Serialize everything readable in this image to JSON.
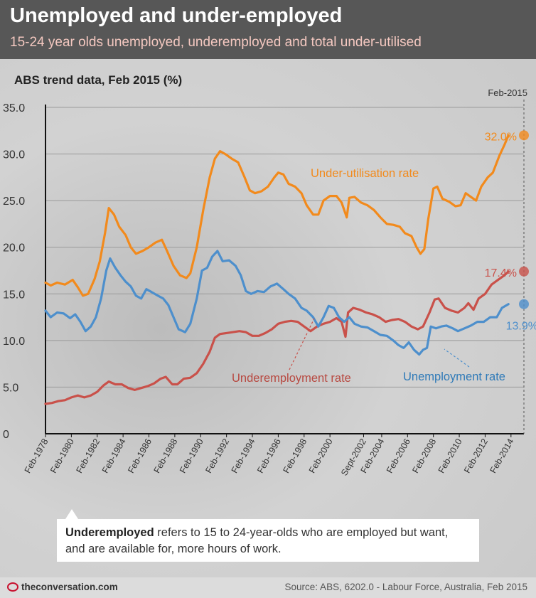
{
  "header": {
    "title": "Unemployed and under-employed",
    "subtitle": "15-24 year olds unemployed, underemployed and total under-utilised"
  },
  "chart_title": "ABS trend data, Feb 2015 (%)",
  "note": {
    "term": "Underemployed",
    "text": " refers to 15 to 24-year-olds who are employed but want, and are available for, more hours of work."
  },
  "footer": {
    "brand": "theconversation.com",
    "brand_icon": "conversation-logo-icon",
    "source": "Source: ABS, 6202.0 - Labour Force, Australia, Feb 2015"
  },
  "chart_data": {
    "type": "line",
    "ylim": [
      0,
      35
    ],
    "xlim": [
      1978.1,
      2015.1
    ],
    "y_ticks": [
      {
        "value": 0,
        "label": "0"
      },
      {
        "value": 5,
        "label": "5.0"
      },
      {
        "value": 10,
        "label": "10.0"
      },
      {
        "value": 15,
        "label": "15.0"
      },
      {
        "value": 20,
        "label": "20.0"
      },
      {
        "value": 25,
        "label": "25.0"
      },
      {
        "value": 30,
        "label": "30.0"
      },
      {
        "value": 35,
        "label": "35.0"
      }
    ],
    "x_ticks": [
      {
        "value": 1978.1,
        "label": "Feb-1978"
      },
      {
        "value": 1980.1,
        "label": "Feb-1980"
      },
      {
        "value": 1982.1,
        "label": "Feb-1982"
      },
      {
        "value": 1984.1,
        "label": "Feb-1984"
      },
      {
        "value": 1986.1,
        "label": "Feb-1986"
      },
      {
        "value": 1988.1,
        "label": "Feb-1988"
      },
      {
        "value": 1990.1,
        "label": "Feb-1990"
      },
      {
        "value": 1992.1,
        "label": "Feb-1992"
      },
      {
        "value": 1994.1,
        "label": "Feb-1994"
      },
      {
        "value": 1996.1,
        "label": "Feb-1996"
      },
      {
        "value": 1998.1,
        "label": "Feb-1998"
      },
      {
        "value": 2000.1,
        "label": "Feb-2000"
      },
      {
        "value": 2002.7,
        "label": "Sept-2002"
      },
      {
        "value": 2004.1,
        "label": "Feb-2004"
      },
      {
        "value": 2006.1,
        "label": "Feb-2006"
      },
      {
        "value": 2008.1,
        "label": "Feb-2008"
      },
      {
        "value": 2010.1,
        "label": "Feb-2010"
      },
      {
        "value": 2012.1,
        "label": "Feb-2012"
      },
      {
        "value": 2014.1,
        "label": "Feb-2014"
      }
    ],
    "ref_label": "Feb-2015",
    "ref_x": 2015.1,
    "grid": "horizontal",
    "series": [
      {
        "name": "Under-utilisation rate",
        "color": "#f28a1c",
        "end_label": "32.0%",
        "points": [
          [
            1978.1,
            16.2
          ],
          [
            1978.5,
            15.9
          ],
          [
            1979.0,
            16.2
          ],
          [
            1979.6,
            16.0
          ],
          [
            1980.2,
            16.5
          ],
          [
            1980.6,
            15.7
          ],
          [
            1981.0,
            14.8
          ],
          [
            1981.4,
            15.0
          ],
          [
            1981.9,
            16.6
          ],
          [
            1982.3,
            18.5
          ],
          [
            1982.7,
            21.5
          ],
          [
            1983.0,
            24.2
          ],
          [
            1983.4,
            23.5
          ],
          [
            1983.8,
            22.2
          ],
          [
            1984.3,
            21.3
          ],
          [
            1984.7,
            20.0
          ],
          [
            1985.1,
            19.3
          ],
          [
            1985.6,
            19.6
          ],
          [
            1986.1,
            20.0
          ],
          [
            1986.6,
            20.5
          ],
          [
            1987.1,
            20.8
          ],
          [
            1987.5,
            19.6
          ],
          [
            1988.0,
            18.0
          ],
          [
            1988.5,
            17.0
          ],
          [
            1989.0,
            16.7
          ],
          [
            1989.3,
            17.2
          ],
          [
            1989.8,
            20.0
          ],
          [
            1990.3,
            24.0
          ],
          [
            1990.8,
            27.5
          ],
          [
            1991.2,
            29.5
          ],
          [
            1991.6,
            30.3
          ],
          [
            1992.0,
            30.0
          ],
          [
            1992.5,
            29.5
          ],
          [
            1993.0,
            29.1
          ],
          [
            1993.5,
            27.5
          ],
          [
            1993.9,
            26.1
          ],
          [
            1994.3,
            25.8
          ],
          [
            1994.8,
            26.0
          ],
          [
            1995.3,
            26.5
          ],
          [
            1995.8,
            27.5
          ],
          [
            1996.1,
            28.0
          ],
          [
            1996.5,
            27.8
          ],
          [
            1996.9,
            26.8
          ],
          [
            1997.4,
            26.5
          ],
          [
            1997.9,
            25.8
          ],
          [
            1998.3,
            24.5
          ],
          [
            1998.8,
            23.5
          ],
          [
            1999.2,
            23.5
          ],
          [
            1999.6,
            25.0
          ],
          [
            2000.1,
            25.5
          ],
          [
            2000.6,
            25.5
          ],
          [
            2001.0,
            24.8
          ],
          [
            2001.4,
            23.2
          ],
          [
            2001.6,
            25.3
          ],
          [
            2002.0,
            25.4
          ],
          [
            2002.5,
            24.8
          ],
          [
            2003.0,
            24.5
          ],
          [
            2003.5,
            24.0
          ],
          [
            2004.0,
            23.2
          ],
          [
            2004.5,
            22.5
          ],
          [
            2005.0,
            22.4
          ],
          [
            2005.5,
            22.2
          ],
          [
            2005.9,
            21.5
          ],
          [
            2006.4,
            21.2
          ],
          [
            2006.8,
            20.0
          ],
          [
            2007.1,
            19.3
          ],
          [
            2007.4,
            19.8
          ],
          [
            2007.7,
            23.0
          ],
          [
            2008.1,
            26.3
          ],
          [
            2008.4,
            26.5
          ],
          [
            2008.8,
            25.2
          ],
          [
            2009.3,
            24.9
          ],
          [
            2009.8,
            24.4
          ],
          [
            2010.2,
            24.5
          ],
          [
            2010.6,
            25.8
          ],
          [
            2011.0,
            25.4
          ],
          [
            2011.4,
            25.0
          ],
          [
            2011.8,
            26.5
          ],
          [
            2012.3,
            27.5
          ],
          [
            2012.7,
            28.0
          ],
          [
            2013.2,
            29.8
          ],
          [
            2013.6,
            31.0
          ],
          [
            2013.9,
            32.0
          ]
        ]
      },
      {
        "name": "Underemployment rate",
        "color": "#c9514a",
        "end_label": "17.4%",
        "points": [
          [
            1978.1,
            3.2
          ],
          [
            1978.6,
            3.3
          ],
          [
            1979.1,
            3.5
          ],
          [
            1979.6,
            3.6
          ],
          [
            1980.1,
            3.9
          ],
          [
            1980.6,
            4.1
          ],
          [
            1981.1,
            3.9
          ],
          [
            1981.6,
            4.1
          ],
          [
            1982.1,
            4.5
          ],
          [
            1982.6,
            5.2
          ],
          [
            1983.0,
            5.6
          ],
          [
            1983.5,
            5.3
          ],
          [
            1984.0,
            5.3
          ],
          [
            1984.5,
            4.9
          ],
          [
            1985.0,
            4.7
          ],
          [
            1985.5,
            4.9
          ],
          [
            1986.0,
            5.1
          ],
          [
            1986.5,
            5.4
          ],
          [
            1987.0,
            5.9
          ],
          [
            1987.4,
            6.1
          ],
          [
            1987.9,
            5.3
          ],
          [
            1988.3,
            5.3
          ],
          [
            1988.8,
            5.9
          ],
          [
            1989.3,
            6.0
          ],
          [
            1989.8,
            6.5
          ],
          [
            1990.3,
            7.5
          ],
          [
            1990.8,
            8.8
          ],
          [
            1991.2,
            10.3
          ],
          [
            1991.6,
            10.7
          ],
          [
            1992.1,
            10.8
          ],
          [
            1992.6,
            10.9
          ],
          [
            1993.1,
            11.0
          ],
          [
            1993.6,
            10.9
          ],
          [
            1994.1,
            10.5
          ],
          [
            1994.6,
            10.5
          ],
          [
            1995.1,
            10.8
          ],
          [
            1995.6,
            11.2
          ],
          [
            1996.1,
            11.8
          ],
          [
            1996.6,
            12.0
          ],
          [
            1997.1,
            12.1
          ],
          [
            1997.6,
            12.0
          ],
          [
            1998.1,
            11.5
          ],
          [
            1998.6,
            11.0
          ],
          [
            1999.1,
            11.5
          ],
          [
            1999.6,
            11.8
          ],
          [
            2000.1,
            12.0
          ],
          [
            2000.6,
            12.4
          ],
          [
            2001.0,
            12.0
          ],
          [
            2001.3,
            10.4
          ],
          [
            2001.5,
            13.0
          ],
          [
            2001.9,
            13.5
          ],
          [
            2002.4,
            13.3
          ],
          [
            2002.9,
            13.0
          ],
          [
            2003.4,
            12.8
          ],
          [
            2003.9,
            12.5
          ],
          [
            2004.4,
            12.0
          ],
          [
            2004.9,
            12.2
          ],
          [
            2005.4,
            12.3
          ],
          [
            2005.9,
            12.0
          ],
          [
            2006.4,
            11.5
          ],
          [
            2006.9,
            11.2
          ],
          [
            2007.3,
            11.5
          ],
          [
            2007.8,
            13.0
          ],
          [
            2008.2,
            14.4
          ],
          [
            2008.5,
            14.5
          ],
          [
            2009.0,
            13.5
          ],
          [
            2009.5,
            13.2
          ],
          [
            2010.0,
            13.0
          ],
          [
            2010.5,
            13.5
          ],
          [
            2010.8,
            14.0
          ],
          [
            2011.2,
            13.3
          ],
          [
            2011.6,
            14.5
          ],
          [
            2012.1,
            15.0
          ],
          [
            2012.6,
            16.0
          ],
          [
            2013.1,
            16.5
          ],
          [
            2013.6,
            17.0
          ],
          [
            2013.9,
            17.4
          ]
        ]
      },
      {
        "name": "Unemployment rate",
        "color": "#4d8fcc",
        "end_label": "13.9%",
        "points": [
          [
            1978.1,
            13.2
          ],
          [
            1978.5,
            12.5
          ],
          [
            1979.0,
            13.0
          ],
          [
            1979.5,
            12.9
          ],
          [
            1980.0,
            12.4
          ],
          [
            1980.4,
            12.8
          ],
          [
            1980.8,
            12.0
          ],
          [
            1981.2,
            11.0
          ],
          [
            1981.6,
            11.5
          ],
          [
            1982.0,
            12.5
          ],
          [
            1982.4,
            14.5
          ],
          [
            1982.8,
            17.5
          ],
          [
            1983.1,
            18.8
          ],
          [
            1983.5,
            17.8
          ],
          [
            1983.9,
            17.0
          ],
          [
            1984.3,
            16.3
          ],
          [
            1984.7,
            15.8
          ],
          [
            1985.1,
            14.8
          ],
          [
            1985.5,
            14.5
          ],
          [
            1985.9,
            15.5
          ],
          [
            1986.3,
            15.2
          ],
          [
            1986.8,
            14.8
          ],
          [
            1987.2,
            14.5
          ],
          [
            1987.6,
            13.8
          ],
          [
            1988.0,
            12.5
          ],
          [
            1988.4,
            11.2
          ],
          [
            1988.9,
            10.9
          ],
          [
            1989.3,
            11.8
          ],
          [
            1989.8,
            14.5
          ],
          [
            1990.2,
            17.5
          ],
          [
            1990.6,
            17.8
          ],
          [
            1991.0,
            19.0
          ],
          [
            1991.4,
            19.6
          ],
          [
            1991.8,
            18.5
          ],
          [
            1992.3,
            18.6
          ],
          [
            1992.8,
            18.0
          ],
          [
            1993.2,
            17.0
          ],
          [
            1993.6,
            15.3
          ],
          [
            1994.0,
            15.0
          ],
          [
            1994.5,
            15.3
          ],
          [
            1995.0,
            15.2
          ],
          [
            1995.5,
            15.8
          ],
          [
            1996.0,
            16.1
          ],
          [
            1996.5,
            15.5
          ],
          [
            1996.9,
            15.0
          ],
          [
            1997.4,
            14.5
          ],
          [
            1997.9,
            13.5
          ],
          [
            1998.3,
            13.2
          ],
          [
            1998.8,
            12.5
          ],
          [
            1999.2,
            11.5
          ],
          [
            1999.6,
            12.5
          ],
          [
            2000.0,
            13.7
          ],
          [
            2000.4,
            13.5
          ],
          [
            2000.8,
            12.5
          ],
          [
            2001.2,
            12.0
          ],
          [
            2001.6,
            12.5
          ],
          [
            2002.0,
            11.8
          ],
          [
            2002.5,
            11.5
          ],
          [
            2003.0,
            11.4
          ],
          [
            2003.5,
            11.0
          ],
          [
            2004.0,
            10.6
          ],
          [
            2004.5,
            10.5
          ],
          [
            2005.0,
            10.0
          ],
          [
            2005.4,
            9.5
          ],
          [
            2005.8,
            9.2
          ],
          [
            2006.2,
            9.8
          ],
          [
            2006.6,
            9.0
          ],
          [
            2007.0,
            8.5
          ],
          [
            2007.3,
            9.0
          ],
          [
            2007.6,
            9.2
          ],
          [
            2007.9,
            11.5
          ],
          [
            2008.3,
            11.3
          ],
          [
            2008.7,
            11.5
          ],
          [
            2009.1,
            11.6
          ],
          [
            2009.6,
            11.3
          ],
          [
            2010.0,
            11.0
          ],
          [
            2010.5,
            11.3
          ],
          [
            2011.0,
            11.6
          ],
          [
            2011.5,
            12.0
          ],
          [
            2012.0,
            12.0
          ],
          [
            2012.5,
            12.5
          ],
          [
            2013.0,
            12.5
          ],
          [
            2013.4,
            13.5
          ],
          [
            2013.9,
            13.9
          ]
        ]
      }
    ]
  },
  "annotations": [
    {
      "series": 0,
      "text": "Under-utilisation rate"
    },
    {
      "series": 1,
      "text": "Underemployment rate"
    },
    {
      "series": 2,
      "text": "Unemployment rate"
    }
  ]
}
